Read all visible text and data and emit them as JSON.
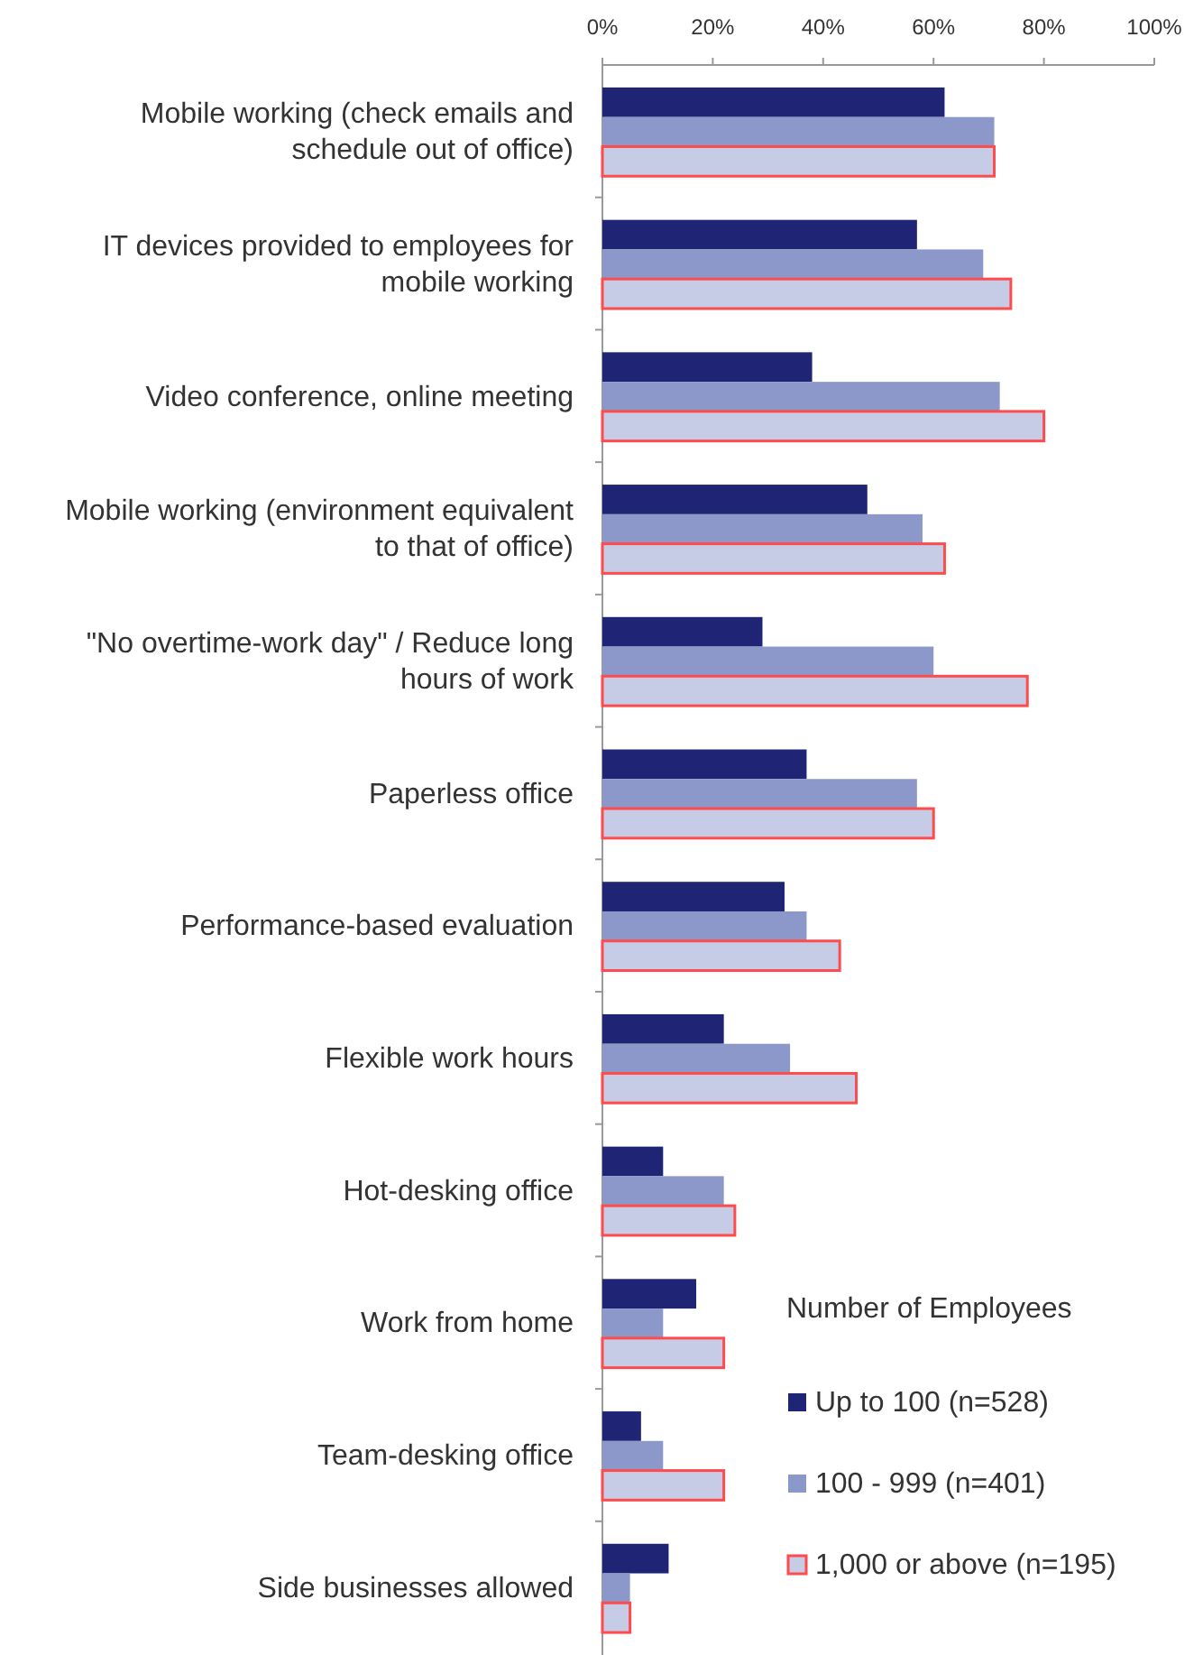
{
  "chart_data": {
    "type": "bar",
    "orientation": "horizontal",
    "categories": [
      "Mobile working (check emails and schedule out of office)",
      "IT devices provided to employees for mobile working",
      "Video conference, online meeting",
      "Mobile working (environment equivalent to that of office)",
      "\"No overtime-work day\" / Reduce long hours of work",
      "Paperless office",
      "Performance-based evaluation",
      "Flexible work hours",
      "Hot-desking office",
      "Work from home",
      "Team-desking office",
      "Side businesses allowed"
    ],
    "series": [
      {
        "name": "Up to 100 (n=528)",
        "color": "#1f2474",
        "values": [
          62,
          57,
          38,
          48,
          29,
          37,
          33,
          22,
          11,
          17,
          7,
          12
        ]
      },
      {
        "name": "100 - 999 (n=401)",
        "color": "#8d98ca",
        "values": [
          71,
          69,
          72,
          58,
          60,
          57,
          37,
          34,
          22,
          11,
          11,
          5
        ]
      },
      {
        "name": "1,000 or above (n=195)",
        "color": "#c6cce6",
        "values": [
          71,
          74,
          80,
          62,
          77,
          60,
          43,
          46,
          24,
          22,
          22,
          5
        ]
      }
    ],
    "xlim": [
      0,
      100
    ],
    "xticks": [
      {
        "value": 0,
        "label": "0%"
      },
      {
        "value": 20,
        "label": "20%"
      },
      {
        "value": 40,
        "label": "40%"
      },
      {
        "value": 60,
        "label": "60%"
      },
      {
        "value": 80,
        "label": "80%"
      },
      {
        "value": 100,
        "label": "100%"
      }
    ],
    "legend_title": "Number of Employees",
    "legend": "bottom right",
    "grid": false
  }
}
